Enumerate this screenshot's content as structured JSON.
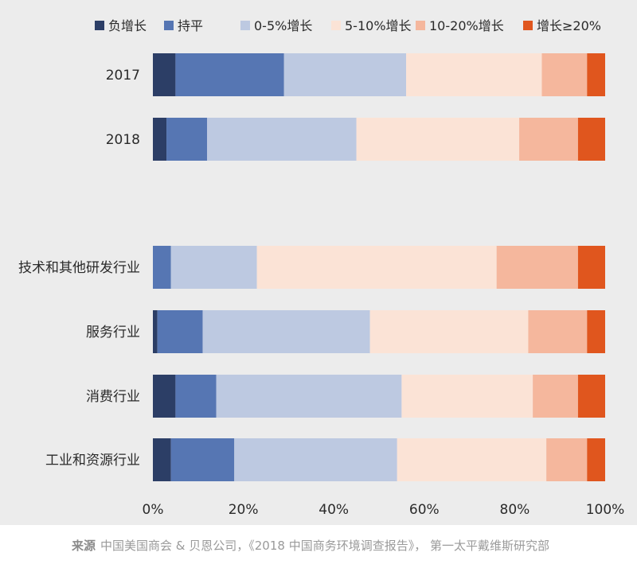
{
  "chart_data": {
    "type": "bar",
    "orientation": "horizontal",
    "stacked": true,
    "categories": [
      "2017",
      "2018",
      "技术和其他研发行业",
      "服务行业",
      "消费行业",
      "工业和资源行业"
    ],
    "series": [
      {
        "name": "负增长",
        "color": "#2c3e66",
        "values": [
          5,
          3,
          0,
          1,
          5,
          4
        ]
      },
      {
        "name": "持平",
        "color": "#5676b3",
        "values": [
          24,
          9,
          4,
          10,
          9,
          14
        ]
      },
      {
        "name": "0-5%增长",
        "color": "#bdc9e1",
        "values": [
          27,
          33,
          19,
          37,
          41,
          36
        ]
      },
      {
        "name": "5-10%增长",
        "color": "#fbe3d6",
        "values": [
          30,
          36,
          53,
          35,
          29,
          33
        ]
      },
      {
        "name": "10-20%增长",
        "color": "#f5b79d",
        "values": [
          10,
          13,
          18,
          13,
          10,
          9
        ]
      },
      {
        "name": "增长≥20%",
        "color": "#e0561e",
        "values": [
          4,
          6,
          6,
          4,
          6,
          4
        ]
      }
    ],
    "xlim": [
      0,
      100
    ],
    "x_ticks": [
      "0%",
      "20%",
      "40%",
      "60%",
      "80%",
      "100%"
    ],
    "legend": "top",
    "grid": false
  },
  "source": {
    "label": "来源",
    "text": "中国美国商会 & 贝恩公司，《2018 中国商务环境调查报告》， 第一太平戴维斯研究部"
  }
}
